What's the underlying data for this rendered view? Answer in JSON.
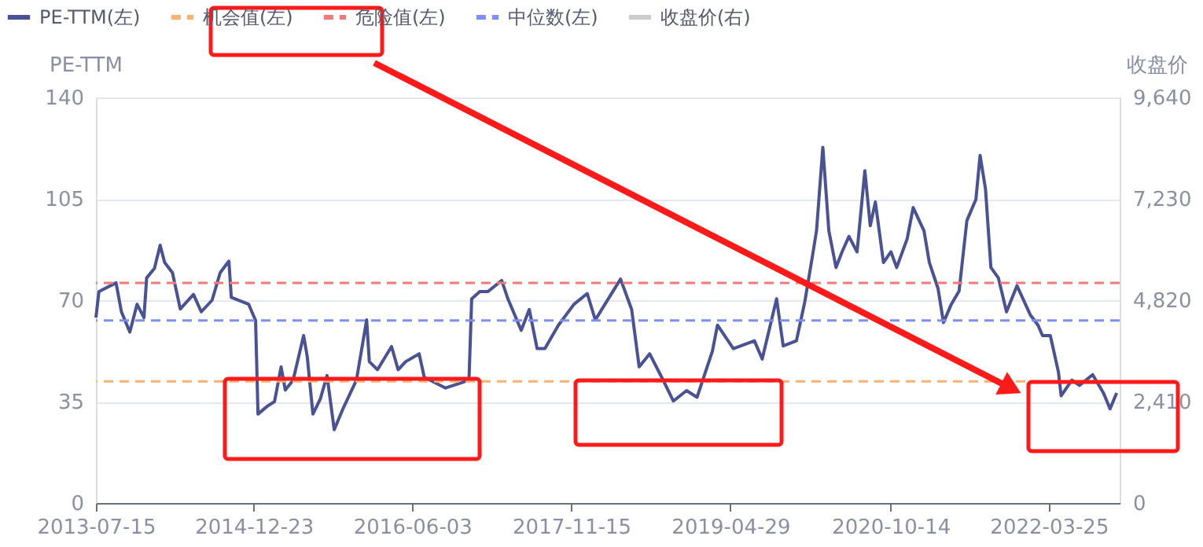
{
  "chart_data": {
    "type": "line",
    "xlim": [
      "2013-07-15",
      "2022-11-16"
    ],
    "xticks": [
      "2013-07-15",
      "2014-12-23",
      "2016-06-03",
      "2017-11-15",
      "2019-04-29",
      "2020-10-14",
      "2022-03-25"
    ],
    "ylabel": "PE-TTM",
    "y2label": "收盘价",
    "ylim": [
      0,
      140
    ],
    "yticks": [
      0,
      35,
      70,
      105,
      140
    ],
    "y2lim": [
      0,
      9640
    ],
    "y2ticks": [
      {
        "value": 0,
        "label": "0"
      },
      {
        "value": 2410,
        "label": "2,410"
      },
      {
        "value": 4820,
        "label": "4,820"
      },
      {
        "value": 7230,
        "label": "7,230"
      },
      {
        "value": 9640,
        "label": "9,640"
      }
    ],
    "grid": "y",
    "legend": "top left",
    "marker": "none",
    "line_style": "solid",
    "series": [
      {
        "name": "PE-TTM(左)",
        "color": "#4a5296",
        "x": [
          "2013-07-15",
          "2013-07-25",
          "2013-09-20",
          "2013-10-08",
          "2013-11-05",
          "2013-11-29",
          "2013-12-22",
          "2013-12-31",
          "2014-01-26",
          "2014-02-14",
          "2014-03-01",
          "2014-03-27",
          "2014-04-22",
          "2014-06-05",
          "2014-07-01",
          "2014-08-06",
          "2014-09-02",
          "2014-10-01",
          "2014-10-09",
          "2014-12-06",
          "2014-12-29",
          "2015-01-06",
          "2015-02-06",
          "2015-03-02",
          "2015-03-24",
          "2015-04-07",
          "2015-05-03",
          "2015-06-07",
          "2015-06-19",
          "2015-07-08",
          "2015-08-02",
          "2015-08-24",
          "2015-09-17",
          "2015-10-16",
          "2015-11-30",
          "2016-01-03",
          "2016-01-12",
          "2016-02-08",
          "2016-03-26",
          "2016-04-17",
          "2016-05-12",
          "2016-06-26",
          "2016-07-13",
          "2016-09-22",
          "2016-11-13",
          "2016-12-09",
          "2016-12-18",
          "2017-01-14",
          "2017-02-10",
          "2017-03-28",
          "2017-04-18",
          "2017-06-01",
          "2017-06-28",
          "2017-07-24",
          "2017-08-19",
          "2017-10-03",
          "2017-11-24",
          "2018-01-07",
          "2018-02-03",
          "2018-03-07",
          "2018-04-28",
          "2018-06-04",
          "2018-06-29",
          "2018-08-03",
          "2018-09-17",
          "2018-10-21",
          "2018-12-04",
          "2019-01-08",
          "2019-02-28",
          "2019-03-17",
          "2019-05-09",
          "2019-07-18",
          "2019-08-13",
          "2019-09-30",
          "2019-10-22",
          "2019-12-05",
          "2020-01-02",
          "2020-01-27",
          "2020-02-10",
          "2020-03-02",
          "2020-03-22",
          "2020-04-15",
          "2020-05-05",
          "2020-05-28",
          "2020-06-24",
          "2020-07-20",
          "2020-08-07",
          "2020-08-24",
          "2020-09-20",
          "2020-10-15",
          "2020-11-03",
          "2020-12-08",
          "2020-12-28",
          "2021-02-02",
          "2021-02-20",
          "2021-03-21",
          "2021-04-08",
          "2021-05-04",
          "2021-05-30",
          "2021-06-25",
          "2021-07-25",
          "2021-08-08",
          "2021-08-26",
          "2021-09-13",
          "2021-10-08",
          "2021-11-04",
          "2021-12-09",
          "2022-01-22",
          "2022-02-17",
          "2022-03-04",
          "2022-03-30",
          "2022-04-26",
          "2022-05-05",
          "2022-06-10",
          "2022-07-05",
          "2022-08-18",
          "2022-09-23",
          "2022-10-15",
          "2022-11-06"
        ],
        "values": [
          64,
          73,
          76,
          66,
          59,
          68.6,
          64,
          77.7,
          81,
          89,
          83,
          79.5,
          67,
          72,
          66,
          70,
          79.5,
          83.5,
          71,
          68.6,
          63,
          30.7,
          33.4,
          35,
          47,
          39,
          42.4,
          57.8,
          50.6,
          30.7,
          36,
          44,
          25.3,
          32.5,
          42.4,
          63.2,
          48.8,
          46,
          54,
          46,
          48.8,
          51.5,
          43.4,
          39.7,
          41.5,
          42.4,
          70.5,
          73,
          73,
          76.8,
          70.4,
          59.6,
          66.8,
          53.3,
          53.3,
          61.4,
          68.6,
          72.3,
          63.2,
          68.6,
          77.3,
          66.8,
          47,
          51.5,
          42.4,
          35.2,
          38.8,
          36.5,
          52.4,
          61.4,
          53.3,
          56,
          49.7,
          70.5,
          54.2,
          56,
          69.5,
          85,
          94,
          122.8,
          94,
          81.3,
          86.7,
          92,
          86.7,
          114.7,
          95.7,
          103.9,
          83,
          86.7,
          81.3,
          91.2,
          102,
          94,
          83,
          74,
          62.3,
          68.6,
          73.2,
          97.5,
          104.8,
          120,
          108.4,
          81.3,
          77.7,
          66,
          75,
          65,
          61.4,
          57.8,
          57.8,
          45.2,
          37,
          42.4,
          40.6,
          44.3,
          38,
          32.5,
          38
        ]
      },
      {
        "name": "收盘价(右)",
        "color": "#cccccc",
        "axis": "y2"
      }
    ],
    "ref_lines": [
      {
        "axis": "y",
        "value": 42,
        "label": "机会值(左)",
        "color": "#f9b36f",
        "line_style": "dashed"
      },
      {
        "axis": "y",
        "value": 76,
        "label": "危险值(左)",
        "color": "#f47a7a",
        "line_style": "dashed"
      },
      {
        "axis": "y",
        "value": 63,
        "label": "中位数(左)",
        "color": "#7b8ff7",
        "line_style": "dashed"
      }
    ]
  }
}
